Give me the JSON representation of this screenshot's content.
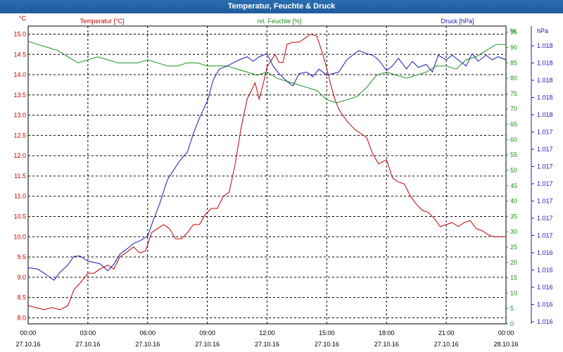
{
  "window": {
    "title": "Temperatur, Feuchte & Druck"
  },
  "colors": {
    "temperature": "#c00000",
    "humidity": "#1f8f1f",
    "pressure": "#1a1ab4",
    "grid": "#000000",
    "titlebar": "#1e5c9c"
  },
  "chart_data": {
    "type": "line",
    "title": "Temperatur, Feuchte & Druck",
    "grid": true,
    "x_ticks": [
      {
        "time": "00:00",
        "date": "27.10.16"
      },
      {
        "time": "03:00",
        "date": "27.10.16"
      },
      {
        "time": "06:00",
        "date": "27.10.16"
      },
      {
        "time": "09:00",
        "date": "27.10.16"
      },
      {
        "time": "12:00",
        "date": "27.10.16"
      },
      {
        "time": "15:00",
        "date": "27.10.16"
      },
      {
        "time": "18:00",
        "date": "27.10.16"
      },
      {
        "time": "21:00",
        "date": "27.10.16"
      },
      {
        "time": "00:00",
        "date": "28.10.16"
      }
    ],
    "xlim": [
      0,
      24
    ],
    "axes": {
      "temperature": {
        "unit": "°C",
        "label": "Temperatur [°C]",
        "ylim": [
          7.85,
          15.2
        ],
        "ticks": [
          "8.0",
          "8.5",
          "9.0",
          "9.5",
          "10.0",
          "10.5",
          "11.0",
          "11.5",
          "12.0",
          "12.5",
          "13.0",
          "13.5",
          "14.0",
          "14.5",
          "15.0"
        ]
      },
      "humidity": {
        "unit": "%",
        "label": "rel. Feuchte [%]",
        "ylim": [
          0,
          97
        ],
        "ticks": [
          "0",
          "5",
          "10",
          "15",
          "20",
          "25",
          "30",
          "35",
          "40",
          "45",
          "50",
          "55",
          "60",
          "65",
          "70",
          "75",
          "80",
          "85",
          "90",
          "95"
        ]
      },
      "pressure": {
        "unit": "hPa",
        "label": "Druck [hPa]",
        "ticks": [
          "1.016",
          "1.016",
          "1.016",
          "1.016",
          "1.016",
          "1.017",
          "1.017",
          "1.017",
          "1.017",
          "1.017",
          "1.017",
          "1.017",
          "1.018",
          "1.018",
          "1.018",
          "1.018",
          "1.018"
        ]
      }
    },
    "series": [
      {
        "name": "Temperatur [°C]",
        "axis": "temperature",
        "x": [
          0,
          0.4,
          0.8,
          1.2,
          1.6,
          2.0,
          2.3,
          2.6,
          3.0,
          3.3,
          3.6,
          4.0,
          4.3,
          4.6,
          4.9,
          5.3,
          5.6,
          5.9,
          6.2,
          6.5,
          6.8,
          7.1,
          7.4,
          7.7,
          8.0,
          8.3,
          8.6,
          8.9,
          9.2,
          9.5,
          9.8,
          10.1,
          10.4,
          10.7,
          11.0,
          11.2,
          11.4,
          11.6,
          11.8,
          12.0,
          12.2,
          12.4,
          12.6,
          12.8,
          13.0,
          13.3,
          13.6,
          13.9,
          14.2,
          14.5,
          14.8,
          15.0,
          15.2,
          15.4,
          15.6,
          15.8,
          16.1,
          16.4,
          16.7,
          17.0,
          17.3,
          17.6,
          18.0,
          18.3,
          18.6,
          18.9,
          19.2,
          19.5,
          19.8,
          20.1,
          20.4,
          20.7,
          21.0,
          21.3,
          21.6,
          21.9,
          22.2,
          22.5,
          22.8,
          23.1,
          23.4,
          23.7,
          24.0
        ],
        "values": [
          8.3,
          8.25,
          8.2,
          8.25,
          8.2,
          8.3,
          8.7,
          8.85,
          9.1,
          9.1,
          9.2,
          9.3,
          9.2,
          9.5,
          9.6,
          9.75,
          9.6,
          9.65,
          10.1,
          10.2,
          10.3,
          10.2,
          9.95,
          9.95,
          10.1,
          10.3,
          10.3,
          10.55,
          10.7,
          10.7,
          11.0,
          11.1,
          11.8,
          12.7,
          13.4,
          13.6,
          13.8,
          13.4,
          13.75,
          14.2,
          14.35,
          14.5,
          14.3,
          14.3,
          14.75,
          14.8,
          14.8,
          14.9,
          15.0,
          14.95,
          14.5,
          14.15,
          13.75,
          13.4,
          13.15,
          13.0,
          12.8,
          12.65,
          12.55,
          12.45,
          12.05,
          11.8,
          11.9,
          11.45,
          11.35,
          11.3,
          11.0,
          10.8,
          10.65,
          10.6,
          10.45,
          10.25,
          10.3,
          10.35,
          10.25,
          10.35,
          10.4,
          10.2,
          10.15,
          10.05,
          10.0,
          10.0,
          10.0
        ]
      },
      {
        "name": "rel. Feuchte [%]",
        "axis": "humidity",
        "x": [
          0,
          0.5,
          1.0,
          1.5,
          2.0,
          2.5,
          3.0,
          3.5,
          4.0,
          4.5,
          5.0,
          5.5,
          6.0,
          6.5,
          7.0,
          7.5,
          8.0,
          8.5,
          9.0,
          9.5,
          10.0,
          10.5,
          11.0,
          11.5,
          12.0,
          12.5,
          13.0,
          13.5,
          14.0,
          14.5,
          15.0,
          15.5,
          16.0,
          16.5,
          17.0,
          17.5,
          18.0,
          18.5,
          19.0,
          19.5,
          20.0,
          20.5,
          21.0,
          21.5,
          22.0,
          22.5,
          23.0,
          23.5,
          24.0
        ],
        "values": [
          92,
          91,
          90,
          89,
          87,
          85,
          86,
          87,
          86,
          85,
          85,
          85,
          86,
          85,
          84,
          84,
          85,
          85,
          84,
          84,
          84,
          83,
          82,
          81,
          82,
          80,
          79,
          78,
          77,
          76,
          73,
          72,
          73,
          74,
          77,
          81,
          82,
          81,
          80,
          81,
          82,
          84,
          84,
          83,
          86,
          87,
          89,
          91,
          91
        ]
      },
      {
        "name": "Druck [hPa]",
        "axis": "pressure",
        "x": [
          0,
          0.5,
          1.0,
          1.3,
          1.6,
          2.0,
          2.3,
          2.6,
          3.0,
          3.3,
          3.6,
          4.0,
          4.3,
          4.6,
          5.0,
          5.3,
          5.6,
          6.0,
          6.3,
          6.6,
          7.0,
          7.3,
          7.6,
          8.0,
          8.3,
          8.6,
          9.0,
          9.3,
          9.6,
          10.0,
          10.3,
          10.6,
          11.0,
          11.3,
          11.6,
          12.0,
          12.3,
          12.6,
          13.0,
          13.3,
          13.6,
          14.0,
          14.3,
          14.6,
          15.0,
          15.3,
          15.6,
          16.0,
          16.3,
          16.6,
          17.0,
          17.3,
          17.6,
          18.0,
          18.3,
          18.6,
          19.0,
          19.3,
          19.6,
          20.0,
          20.3,
          20.6,
          21.0,
          21.3,
          21.6,
          22.0,
          22.3,
          22.6,
          23.0,
          23.3,
          23.6,
          24.0
        ],
        "values": [
          18.3,
          17.8,
          15.6,
          14.2,
          16.8,
          19.2,
          22.0,
          22.1,
          20.4,
          20.0,
          19.6,
          17.3,
          19.4,
          22.6,
          24.6,
          26.2,
          27.0,
          28.6,
          34.0,
          39.0,
          47.0,
          50.0,
          53.0,
          56.0,
          62.0,
          67.0,
          72.5,
          79.5,
          83.0,
          84.0,
          85.0,
          86.0,
          87.0,
          85.5,
          87.0,
          88.0,
          84.0,
          81.5,
          79.0,
          77.5,
          81.5,
          82.0,
          80.5,
          83.0,
          81.0,
          81.5,
          82.0,
          86.0,
          87.5,
          89.0,
          88.0,
          87.5,
          86.0,
          82.5,
          84.0,
          86.5,
          83.0,
          85.5,
          83.5,
          84.5,
          82.0,
          87.5,
          86.0,
          87.5,
          86.0,
          84.0,
          88.0,
          85.5,
          87.5,
          86.0,
          87.0,
          86.0
        ]
      }
    ]
  }
}
